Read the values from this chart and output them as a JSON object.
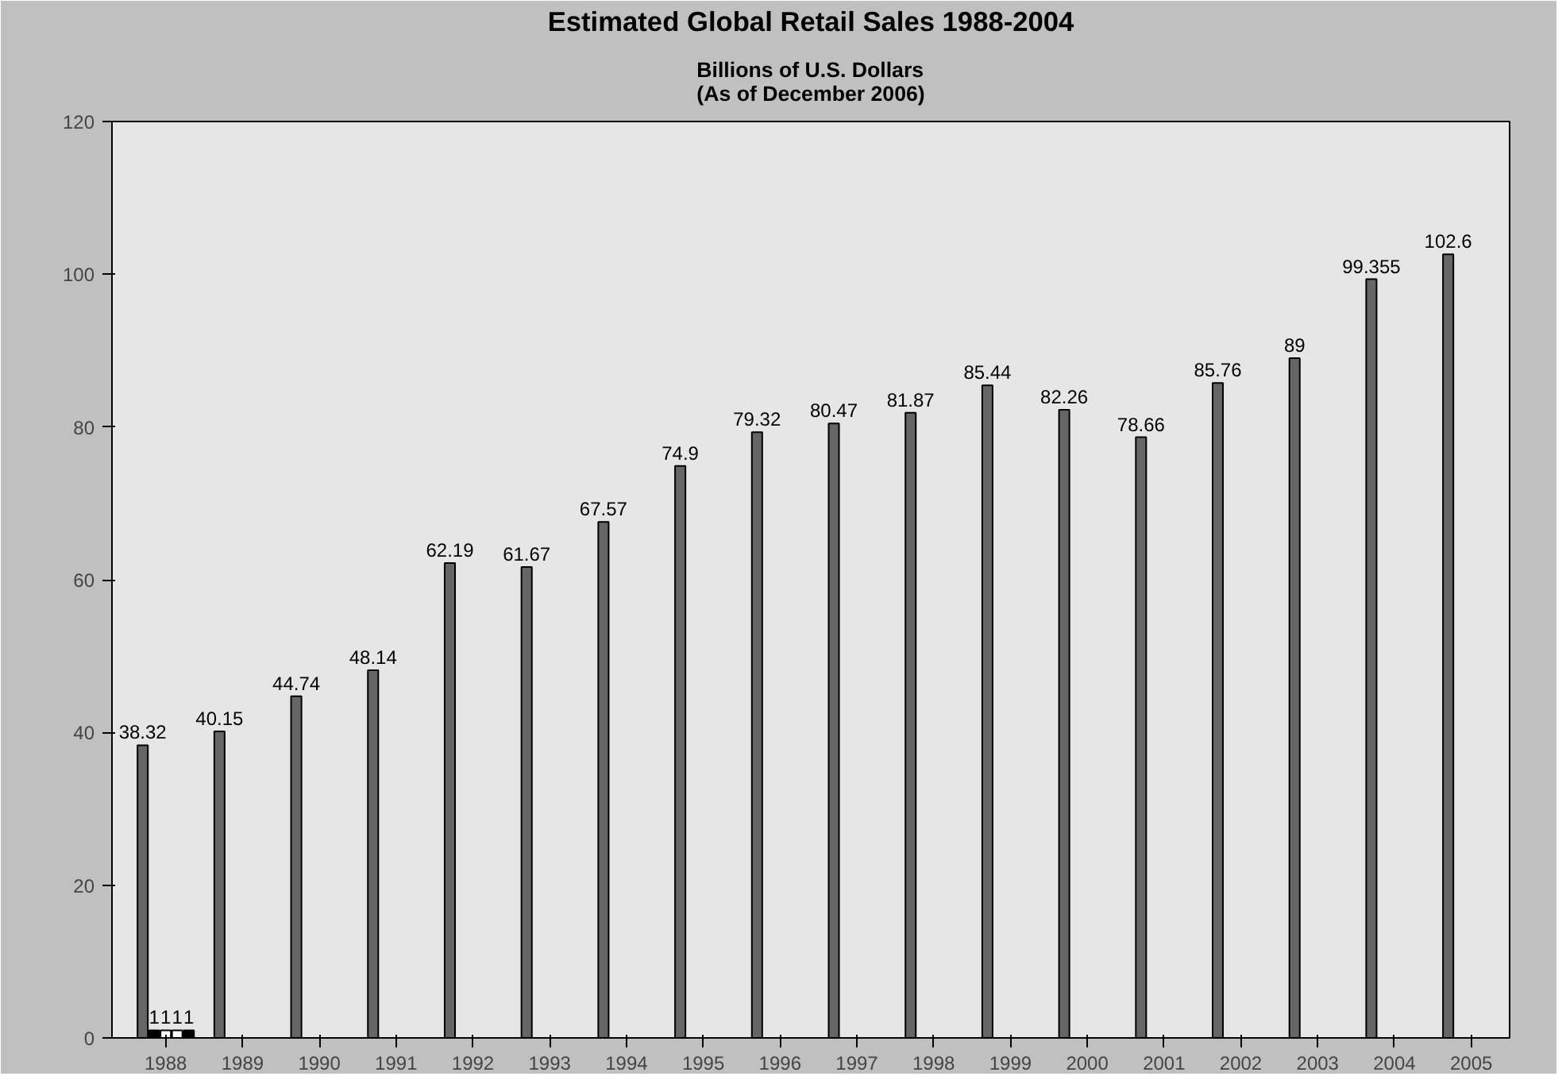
{
  "chart_data": {
    "type": "bar",
    "title": "Estimated Global Retail Sales 1988-2004",
    "subtitle": "Billions of U.S. Dollars\n(As of December 2006)",
    "categories": [
      "1988",
      "1989",
      "1990",
      "1991",
      "1992",
      "1993",
      "1994",
      "1995",
      "1996",
      "1997",
      "1998",
      "1999",
      "2000",
      "2001",
      "2002",
      "2003",
      "2004",
      "2005"
    ],
    "series": [
      {
        "color": "#666666",
        "values": [
          38.32,
          40.15,
          44.74,
          48.14,
          62.19,
          61.67,
          67.57,
          74.9,
          79.32,
          80.47,
          81.87,
          85.44,
          82.26,
          78.66,
          85.76,
          89,
          99.355,
          102.6
        ]
      },
      {
        "color": "#000000",
        "values": [
          1,
          null,
          null,
          null,
          null,
          null,
          null,
          null,
          null,
          null,
          null,
          null,
          null,
          null,
          null,
          null,
          null,
          null
        ]
      },
      {
        "color": "#ffffff",
        "values": [
          1,
          null,
          null,
          null,
          null,
          null,
          null,
          null,
          null,
          null,
          null,
          null,
          null,
          null,
          null,
          null,
          null,
          null
        ]
      },
      {
        "color": "#ffffff",
        "values": [
          1,
          null,
          null,
          null,
          null,
          null,
          null,
          null,
          null,
          null,
          null,
          null,
          null,
          null,
          null,
          null,
          null,
          null
        ]
      },
      {
        "color": "#000000",
        "values": [
          1,
          null,
          null,
          null,
          null,
          null,
          null,
          null,
          null,
          null,
          null,
          null,
          null,
          null,
          null,
          null,
          null,
          null
        ]
      }
    ],
    "ylim": [
      0,
      120
    ],
    "yticks": [
      0,
      20,
      40,
      60,
      80,
      100,
      120
    ],
    "data_labels": true,
    "grid": false
  }
}
